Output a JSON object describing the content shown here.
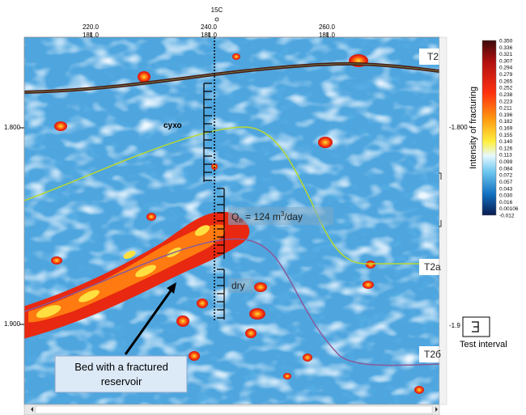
{
  "well": "15C",
  "top_axis": [
    {
      "trace": "220.0",
      "cdp": "181.0"
    },
    {
      "trace": "240.0",
      "cdp": "181.0"
    },
    {
      "trace": "260.0",
      "cdp": "181.0"
    }
  ],
  "left_axis": [
    "1.800",
    "1.900"
  ],
  "right_axis": [
    "-1.800",
    "-1.9"
  ],
  "horizons": [
    "T2",
    "T2a",
    "T2б"
  ],
  "annotations": {
    "dry_ru": "сухо",
    "dry": "dry",
    "flow": {
      "q": "Q",
      "sub": "n",
      "text1": " = 124 m",
      "sup": "3",
      "text2": "/day"
    }
  },
  "callout": [
    "Bed with a fractured",
    "reservoir"
  ],
  "legend": {
    "label": "Test interval"
  },
  "colorbar": {
    "title": "Intensity of fracturing",
    "labels": [
      "0.350",
      "0.336",
      "0.321",
      "0.307",
      "0.294",
      "0.279",
      "0.265",
      "0.252",
      "0.238",
      "0.223",
      "0.211",
      "0.196",
      "0.182",
      "0.169",
      "0.155",
      "0.140",
      "0.126",
      "0.113",
      "0.099",
      "0.084",
      "0.072",
      "0.057",
      "0.043",
      "0.030",
      "0.016",
      "0.00106",
      "-0.012"
    ]
  }
}
